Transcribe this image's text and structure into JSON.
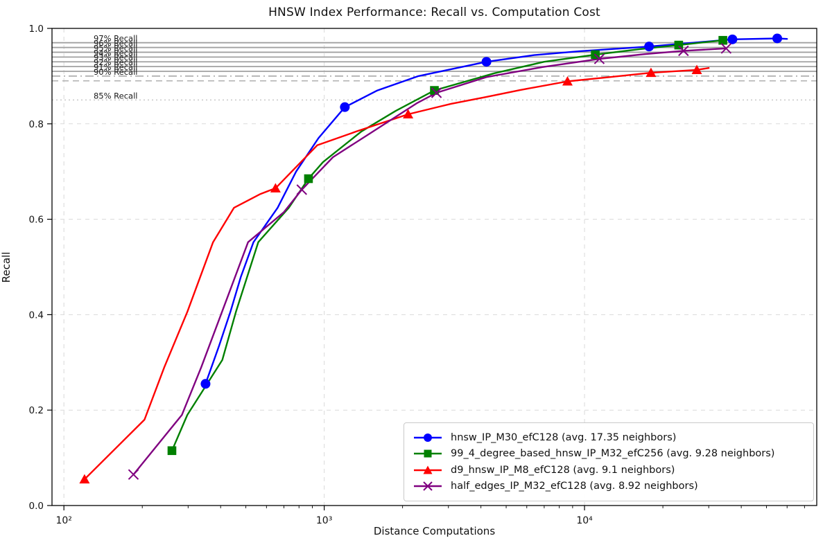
{
  "title": "HNSW Index Performance: Recall vs. Computation Cost",
  "chart_data": {
    "type": "line",
    "title": "HNSW Index Performance: Recall vs. Computation Cost",
    "xlabel": "Distance Computations",
    "ylabel": "Recall",
    "x_scale": "log",
    "xlim": [
      90,
      78000
    ],
    "ylim": [
      0.0,
      1.0
    ],
    "grid": {
      "style": "dashed",
      "color": "#d9d9d9"
    },
    "legend_position": "lower right",
    "x_ticks": [
      {
        "label": "10²",
        "value": 100
      },
      {
        "label": "10³",
        "value": 1000
      },
      {
        "label": "10⁴",
        "value": 10000
      }
    ],
    "x_minor_ticks": [
      200,
      300,
      400,
      500,
      600,
      700,
      800,
      900,
      2000,
      3000,
      4000,
      5000,
      6000,
      7000,
      8000,
      9000,
      20000,
      30000,
      40000,
      50000,
      60000,
      70000
    ],
    "y_ticks": [
      {
        "label": "0.0",
        "value": 0.0
      },
      {
        "label": "0.2",
        "value": 0.2
      },
      {
        "label": "0.4",
        "value": 0.4
      },
      {
        "label": "0.6",
        "value": 0.6
      },
      {
        "label": "0.8",
        "value": 0.8
      },
      {
        "label": "1.0",
        "value": 1.0
      }
    ],
    "thresholds": [
      {
        "value": 0.97,
        "style": "solid",
        "color": "#a0a0a0",
        "label": "97% Recall"
      },
      {
        "value": 0.96,
        "style": "solid",
        "color": "#a0a0a0",
        "label": "96% Recall"
      },
      {
        "value": 0.95,
        "style": "solid",
        "color": "#a0a0a0",
        "label": "95% Recall"
      },
      {
        "value": 0.94,
        "style": "solid",
        "color": "#a0a0a0",
        "label": "94% Recall"
      },
      {
        "value": 0.93,
        "style": "solid",
        "color": "#a0a0a0",
        "label": "93% Recall"
      },
      {
        "value": 0.92,
        "style": "solid",
        "color": "#a0a0a0",
        "label": "92% Recall"
      },
      {
        "value": 0.91,
        "style": "solid",
        "color": "#a0a0a0",
        "label": "91% Recall"
      },
      {
        "value": 0.9,
        "style": "dashdot",
        "color": "#a0a0a0",
        "label": "90% Recall"
      },
      {
        "value": 0.89,
        "style": "dashed",
        "color": "#b0b0b0",
        "label": ""
      },
      {
        "value": 0.85,
        "style": "dotted",
        "color": "#c8c8c8",
        "label": "85% Recall"
      }
    ],
    "threshold_label_x": 130,
    "series": [
      {
        "name": "hnsw_IP_M30_efC128",
        "legend_label": "hnsw_IP_M30_efC128 (avg. 17.35 neighbors)",
        "color": "#0000ff",
        "marker": "circle",
        "line": [
          [
            350,
            0.255
          ],
          [
            394,
            0.334
          ],
          [
            436,
            0.406
          ],
          [
            478,
            0.479
          ],
          [
            535,
            0.552
          ],
          [
            662,
            0.624
          ],
          [
            780,
            0.7
          ],
          [
            950,
            0.77
          ],
          [
            1200,
            0.835
          ],
          [
            1600,
            0.87
          ],
          [
            2300,
            0.9
          ],
          [
            4200,
            0.93
          ],
          [
            6400,
            0.944
          ],
          [
            9500,
            0.952
          ],
          [
            17700,
            0.962
          ],
          [
            37000,
            0.977
          ],
          [
            55000,
            0.979
          ],
          [
            60000,
            0.978
          ]
        ],
        "markers": [
          [
            350,
            0.255
          ],
          [
            1200,
            0.835
          ],
          [
            4200,
            0.93
          ],
          [
            17700,
            0.962
          ],
          [
            37000,
            0.977
          ],
          [
            55000,
            0.979
          ]
        ]
      },
      {
        "name": "99_4_degree_based_hnsw_IP_M32_efC256",
        "legend_label": "99_4_degree_based_hnsw_IP_M32_efC256 (avg. 9.28 neighbors)",
        "color": "#008000",
        "marker": "square",
        "line": [
          [
            260,
            0.115
          ],
          [
            298,
            0.19
          ],
          [
            406,
            0.305
          ],
          [
            458,
            0.406
          ],
          [
            558,
            0.552
          ],
          [
            731,
            0.624
          ],
          [
            870,
            0.685
          ],
          [
            990,
            0.72
          ],
          [
            1390,
            0.784
          ],
          [
            1880,
            0.827
          ],
          [
            2650,
            0.87
          ],
          [
            4500,
            0.906
          ],
          [
            7000,
            0.93
          ],
          [
            11000,
            0.945
          ],
          [
            16000,
            0.956
          ],
          [
            23000,
            0.965
          ],
          [
            34000,
            0.975
          ]
        ],
        "markers": [
          [
            260,
            0.115
          ],
          [
            870,
            0.685
          ],
          [
            2650,
            0.87
          ],
          [
            11000,
            0.945
          ],
          [
            23000,
            0.965
          ],
          [
            34000,
            0.975
          ]
        ]
      },
      {
        "name": "d9_hnsw_IP_M8_efC128",
        "legend_label": "d9_hnsw_IP_M8_efC128 (avg. 9.1 neighbors)",
        "color": "#ff0000",
        "marker": "triangle",
        "line": [
          [
            120,
            0.055
          ],
          [
            204,
            0.18
          ],
          [
            243,
            0.29
          ],
          [
            298,
            0.406
          ],
          [
            374,
            0.552
          ],
          [
            450,
            0.624
          ],
          [
            569,
            0.653
          ],
          [
            650,
            0.665
          ],
          [
            940,
            0.755
          ],
          [
            1330,
            0.784
          ],
          [
            2100,
            0.82
          ],
          [
            3070,
            0.842
          ],
          [
            4170,
            0.856
          ],
          [
            5670,
            0.871
          ],
          [
            8600,
            0.889
          ],
          [
            12500,
            0.898
          ],
          [
            18000,
            0.907
          ],
          [
            27000,
            0.913
          ],
          [
            30000,
            0.917
          ]
        ],
        "markers": [
          [
            120,
            0.055
          ],
          [
            650,
            0.665
          ],
          [
            2100,
            0.82
          ],
          [
            8600,
            0.889
          ],
          [
            18000,
            0.907
          ],
          [
            27000,
            0.913
          ]
        ]
      },
      {
        "name": "half_edges_IP_M32_efC128",
        "legend_label": "half_edges_IP_M32_efC128 (avg. 8.92 neighbors)",
        "color": "#800080",
        "marker": "x",
        "line": [
          [
            185,
            0.065
          ],
          [
            284,
            0.19
          ],
          [
            337,
            0.29
          ],
          [
            405,
            0.406
          ],
          [
            510,
            0.552
          ],
          [
            700,
            0.615
          ],
          [
            820,
            0.662
          ],
          [
            1080,
            0.73
          ],
          [
            1500,
            0.78
          ],
          [
            2265,
            0.843
          ],
          [
            2700,
            0.865
          ],
          [
            4200,
            0.898
          ],
          [
            6900,
            0.919
          ],
          [
            11400,
            0.936
          ],
          [
            17000,
            0.946
          ],
          [
            24000,
            0.953
          ],
          [
            35000,
            0.958
          ]
        ],
        "markers": [
          [
            185,
            0.065
          ],
          [
            820,
            0.662
          ],
          [
            2700,
            0.865
          ],
          [
            11400,
            0.936
          ],
          [
            24000,
            0.953
          ],
          [
            35000,
            0.958
          ]
        ]
      }
    ]
  }
}
